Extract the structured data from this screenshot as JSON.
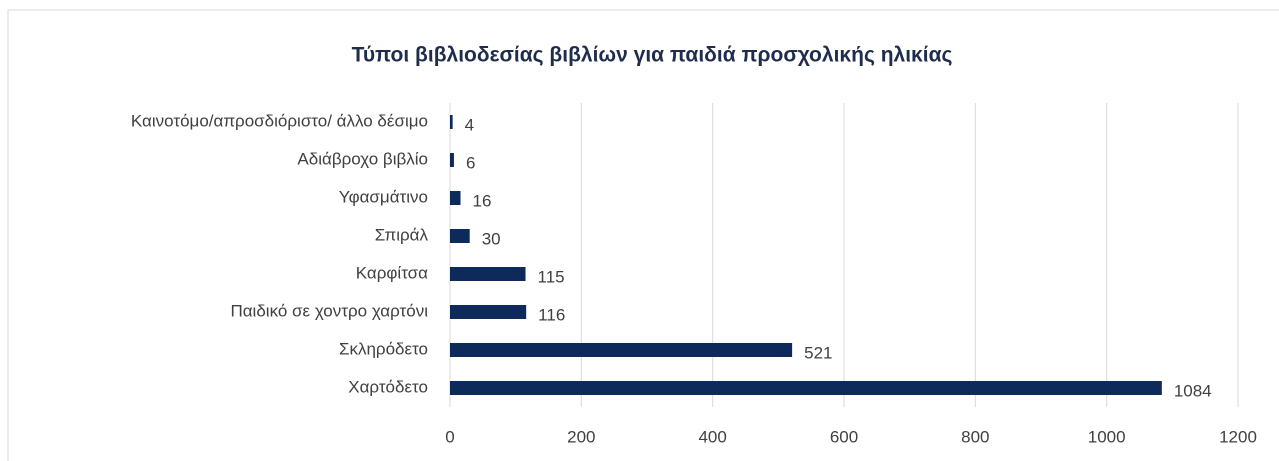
{
  "chart_data": {
    "type": "barh",
    "title": "Τύποι βιβλιοδεσίας βιβλίων για παιδιά προσχολικής ηλικίας",
    "categories": [
      "Καινοτόμο/απροσδιόριστο/ άλλο δέσιμο",
      "Αδιάβροχο βιβλίο",
      "Υφασμάτινο",
      "Σπιράλ",
      "Καρφίτσα",
      "Παιδικό σε χοντρο χαρτόνι",
      "Σκληρόδετο",
      "Χαρτόδετο"
    ],
    "values": [
      4,
      6,
      16,
      30,
      115,
      116,
      521,
      1084
    ],
    "color": "#0d2a5a",
    "xlim": [
      0,
      1200
    ],
    "xticks": [
      0,
      200,
      400,
      600,
      800,
      1000,
      1200
    ],
    "grid": true
  }
}
